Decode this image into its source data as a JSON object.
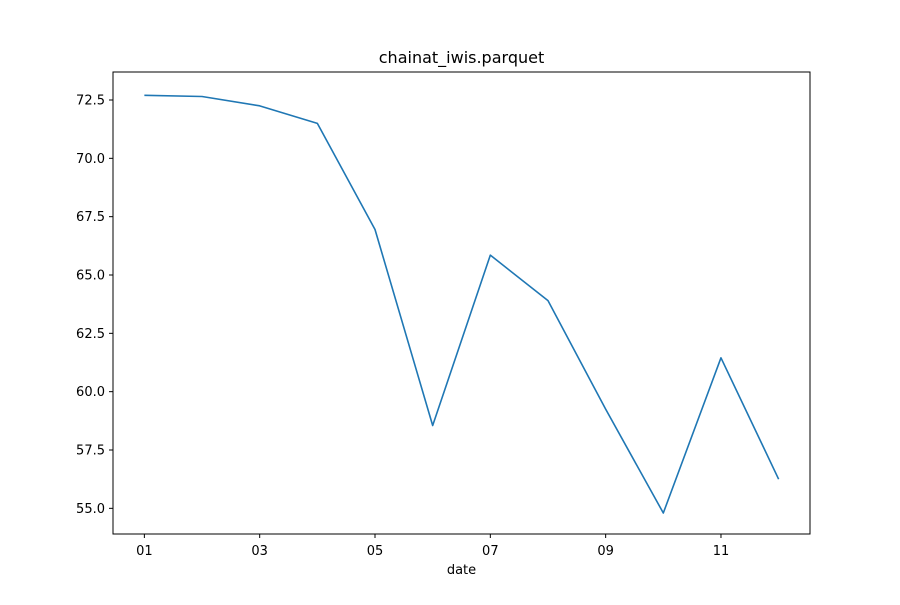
{
  "chart_data": {
    "type": "line",
    "title": "chainat_iwis.parquet",
    "xlabel": "date",
    "ylabel": "",
    "x": [
      "01",
      "02",
      "03",
      "04",
      "05",
      "06",
      "07",
      "08",
      "09",
      "10",
      "11",
      "12"
    ],
    "xticks": [
      "01",
      "03",
      "05",
      "07",
      "09",
      "11"
    ],
    "yticks": [
      "55.0",
      "57.5",
      "60.0",
      "62.5",
      "65.0",
      "67.5",
      "70.0",
      "72.5"
    ],
    "ylim": [
      53.9,
      73.7
    ],
    "series": [
      {
        "values": [
          72.7,
          72.65,
          72.25,
          71.5,
          66.95,
          58.55,
          65.85,
          63.9,
          59.25,
          54.8,
          61.45,
          56.25
        ],
        "color": "#1f77b4"
      }
    ],
    "grid": false,
    "legend": "none"
  }
}
